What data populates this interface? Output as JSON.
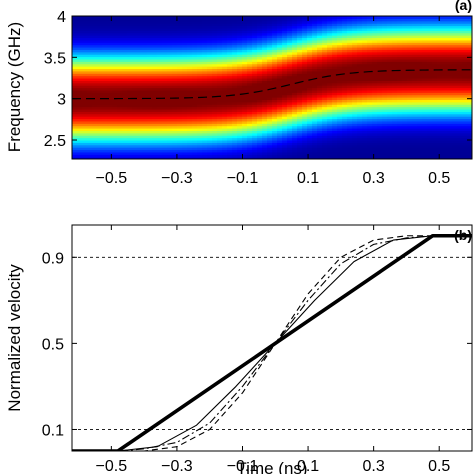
{
  "chart_data": [
    {
      "type": "heatmap",
      "panel_label": "(a)",
      "ylabel": "Frequency  (GHz)",
      "xlim": [
        -0.62,
        0.6
      ],
      "ylim": [
        2.27,
        4.0
      ],
      "xticks": [
        -0.5,
        -0.3,
        -0.1,
        0.1,
        0.3,
        0.5
      ],
      "xtick_labels": [
        "−0.5",
        "−0.3",
        "−0.1",
        "0.1",
        "0.3",
        "0.5"
      ],
      "yticks": [
        2.5,
        3.0,
        3.5,
        4.0
      ],
      "ytick_labels": [
        "2.5",
        "3",
        "3.5",
        "4"
      ],
      "colormap": "jet",
      "band_center_start": 3.0,
      "band_center_end": 3.35,
      "transition_center": 0.05,
      "transition_width": 0.18,
      "dashed_center_line": true
    },
    {
      "type": "line",
      "panel_label": "(b)",
      "xlabel": "Time (ns)",
      "ylabel": "Normalized velocity",
      "xlim": [
        -0.62,
        0.6
      ],
      "ylim": [
        0.0,
        1.05
      ],
      "xticks": [
        -0.5,
        -0.3,
        -0.1,
        0.1,
        0.3,
        0.5
      ],
      "xtick_labels": [
        "−0.5",
        "−0.3",
        "−0.1",
        "0.1",
        "0.3",
        "0.5"
      ],
      "yticks": [
        0.1,
        0.5,
        0.9
      ],
      "ytick_labels": [
        "0.1",
        "0.5",
        "0.9"
      ],
      "reference_lines": [
        0.1,
        0.9
      ],
      "series": [
        {
          "style": "thick",
          "x": [
            -0.62,
            -0.48,
            0.0,
            0.48,
            0.6
          ],
          "y": [
            0.0,
            0.0,
            0.5,
            1.0,
            1.0
          ]
        },
        {
          "style": "thin",
          "x": [
            -0.62,
            -0.48,
            -0.36,
            -0.24,
            -0.12,
            0.0,
            0.12,
            0.24,
            0.36,
            0.48,
            0.6
          ],
          "y": [
            0.0,
            0.0,
            0.02,
            0.12,
            0.3,
            0.5,
            0.7,
            0.88,
            0.98,
            1.0,
            1.0
          ]
        },
        {
          "style": "dashed",
          "x": [
            -0.62,
            -0.48,
            -0.4,
            -0.3,
            -0.2,
            -0.1,
            0.0,
            0.1,
            0.2,
            0.3,
            0.4,
            0.48,
            0.6
          ],
          "y": [
            0.0,
            0.0,
            0.0,
            0.02,
            0.1,
            0.27,
            0.5,
            0.73,
            0.9,
            0.98,
            1.0,
            1.0,
            1.0
          ]
        },
        {
          "style": "dashdot",
          "x": [
            -0.62,
            -0.48,
            -0.4,
            -0.3,
            -0.2,
            -0.1,
            0.0,
            0.1,
            0.2,
            0.3,
            0.4,
            0.48,
            0.6
          ],
          "y": [
            0.0,
            0.0,
            0.01,
            0.04,
            0.13,
            0.3,
            0.5,
            0.7,
            0.87,
            0.96,
            0.99,
            1.0,
            1.0
          ]
        }
      ]
    }
  ]
}
